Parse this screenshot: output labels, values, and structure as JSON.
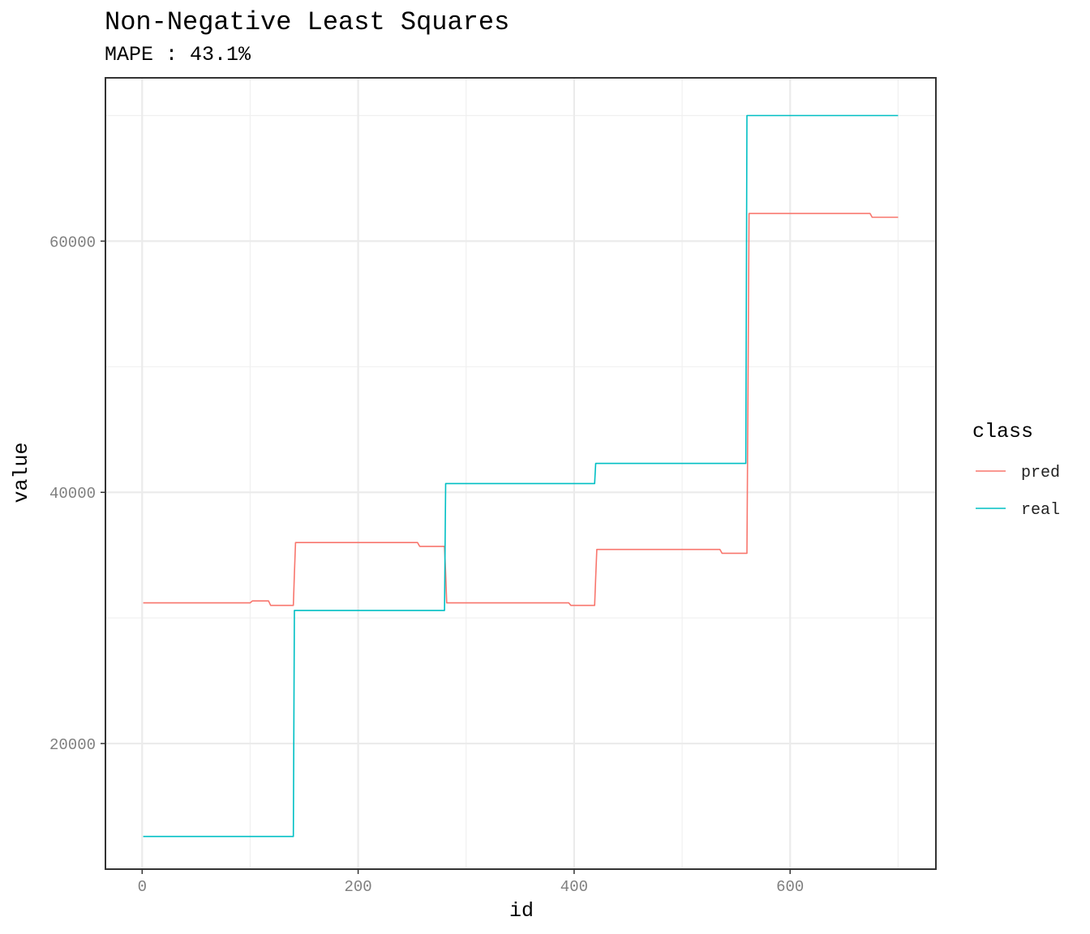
{
  "chart_data": {
    "type": "line",
    "title": "Non-Negative Least Squares",
    "subtitle": "MAPE : 43.1%",
    "xlabel": "id",
    "ylabel": "value",
    "xlim": [
      -34,
      735
    ],
    "ylim": [
      10000,
      73000
    ],
    "x_ticks": [
      0,
      200,
      400,
      600
    ],
    "x_tick_labels": [
      "0",
      "200",
      "400",
      "600"
    ],
    "y_ticks": [
      20000,
      40000,
      60000
    ],
    "y_tick_labels": [
      "20000",
      "40000",
      "60000"
    ],
    "grid": true,
    "legend": {
      "title": "class",
      "position": "right"
    },
    "series": [
      {
        "name": "pred",
        "color": "#F8766D",
        "x": [
          1,
          100,
          102,
          117,
          119,
          140,
          141,
          142,
          255,
          257,
          280,
          281,
          282,
          395,
          397,
          419,
          420,
          421,
          535,
          537,
          560,
          561,
          562,
          674,
          676,
          700
        ],
        "y": [
          31200,
          31200,
          31350,
          31350,
          31000,
          31000,
          33500,
          36000,
          36000,
          35700,
          35700,
          33500,
          31200,
          31200,
          31000,
          31000,
          33200,
          35450,
          35450,
          35150,
          35150,
          48000,
          62200,
          62200,
          61900,
          61900
        ]
      },
      {
        "name": "real",
        "color": "#00BFC4",
        "x": [
          1,
          140,
          141,
          280,
          281,
          419,
          420,
          559,
          560,
          700
        ],
        "y": [
          12600,
          12600,
          30600,
          30600,
          40700,
          40700,
          42300,
          42300,
          70000,
          70000
        ]
      }
    ]
  }
}
